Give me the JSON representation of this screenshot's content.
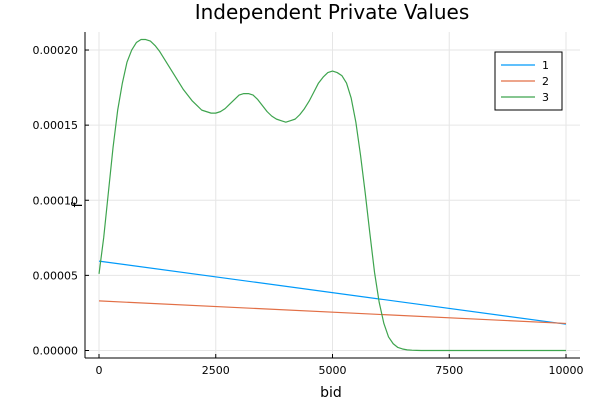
{
  "chart_data": {
    "type": "line",
    "title": "Independent Private Values",
    "xlabel": "bid",
    "ylabel": "f",
    "xlim": [
      -300,
      10300
    ],
    "ylim": [
      -5e-06,
      0.000212
    ],
    "xticks": [
      0,
      2500,
      5000,
      7500,
      10000
    ],
    "xtick_labels": [
      "0",
      "2500",
      "5000",
      "7500",
      "10000"
    ],
    "yticks": [
      0,
      5e-05,
      0.0001,
      0.00015,
      0.0002
    ],
    "ytick_labels": [
      "0.00000",
      "0.00005",
      "0.00010",
      "0.00015",
      "0.00020"
    ],
    "grid": true,
    "legend_position": "top-right",
    "series": [
      {
        "name": "1",
        "color": "#009AFA",
        "x": [
          0,
          10000
        ],
        "y": [
          5.95e-05,
          1.75e-05
        ]
      },
      {
        "name": "2",
        "color": "#E26F46",
        "x": [
          0,
          10000
        ],
        "y": [
          3.3e-05,
          1.8e-05
        ]
      },
      {
        "name": "3",
        "color": "#3EA44E",
        "x": [
          0,
          100,
          200,
          300,
          400,
          500,
          600,
          700,
          800,
          900,
          1000,
          1100,
          1200,
          1300,
          1400,
          1500,
          1600,
          1700,
          1800,
          1900,
          2000,
          2100,
          2200,
          2300,
          2400,
          2500,
          2600,
          2700,
          2800,
          2900,
          3000,
          3100,
          3200,
          3300,
          3400,
          3500,
          3600,
          3700,
          3800,
          3900,
          4000,
          4100,
          4200,
          4300,
          4400,
          4500,
          4600,
          4700,
          4800,
          4900,
          5000,
          5100,
          5200,
          5300,
          5400,
          5500,
          5600,
          5700,
          5800,
          5900,
          6000,
          6100,
          6200,
          6300,
          6400,
          6500,
          6600,
          6700,
          6800,
          6900,
          7000,
          7500,
          8000,
          8500,
          9000,
          9500,
          10000
        ],
        "y": [
          5.1e-05,
          7.5e-05,
          0.000105,
          0.000135,
          0.00016,
          0.000178,
          0.000192,
          0.0002,
          0.000205,
          0.000207,
          0.000207,
          0.000206,
          0.000203,
          0.000199,
          0.000194,
          0.000189,
          0.000184,
          0.000179,
          0.000174,
          0.00017,
          0.000166,
          0.000163,
          0.00016,
          0.000159,
          0.000158,
          0.000158,
          0.000159,
          0.000161,
          0.000164,
          0.000167,
          0.00017,
          0.000171,
          0.000171,
          0.00017,
          0.000167,
          0.000163,
          0.000159,
          0.000156,
          0.000154,
          0.000153,
          0.000152,
          0.000153,
          0.000154,
          0.000157,
          0.000161,
          0.000166,
          0.000172,
          0.000178,
          0.000182,
          0.000185,
          0.000186,
          0.000185,
          0.000183,
          0.000178,
          0.000168,
          0.000152,
          0.00013,
          0.000105,
          7.8e-05,
          5.2e-05,
          3.2e-05,
          1.8e-05,
          9e-06,
          4.5e-06,
          2e-06,
          1e-06,
          4e-07,
          2e-07,
          1e-07,
          0.0,
          0.0,
          0.0,
          0.0,
          0.0,
          0.0,
          0.0,
          0.0
        ]
      }
    ]
  }
}
